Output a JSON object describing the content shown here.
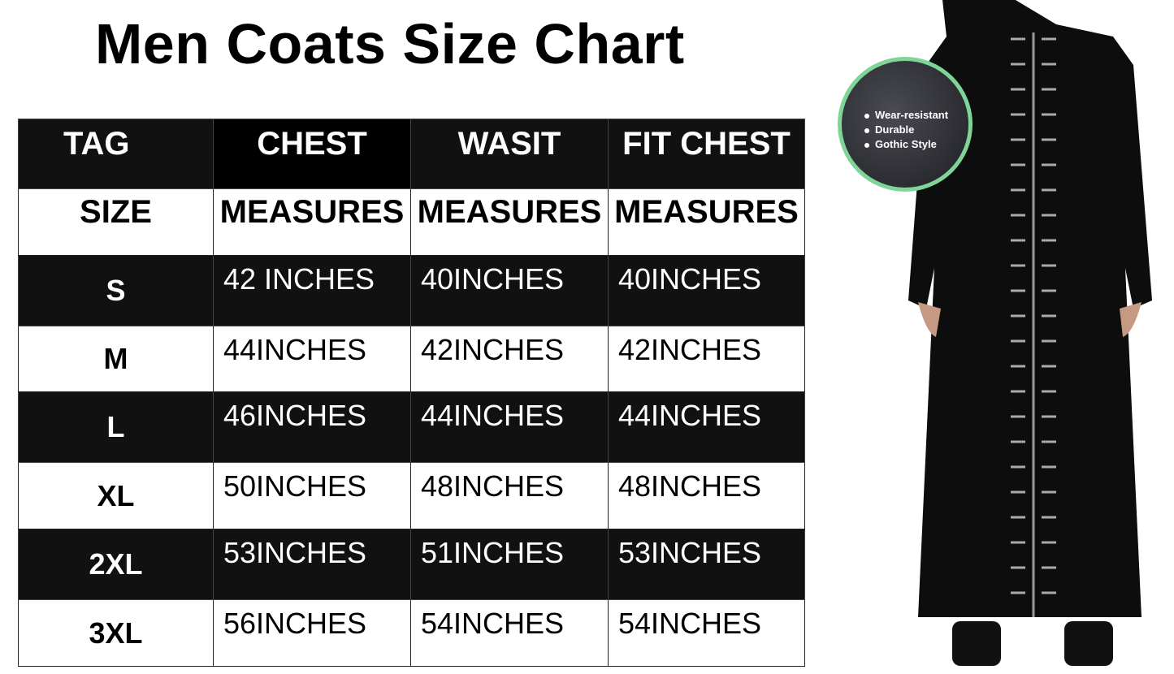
{
  "title": "Men Coats Size Chart",
  "table": {
    "header": [
      "TAG",
      "CHEST",
      "WASIT",
      "FIT CHEST"
    ],
    "subheader": [
      "SIZE",
      "MEASURES",
      "MEASURES",
      "MEASURES"
    ],
    "rows": [
      [
        "S",
        "42 INCHES",
        "40INCHES",
        "40INCHES"
      ],
      [
        "M",
        "44INCHES",
        "42INCHES",
        "42INCHES"
      ],
      [
        "L",
        "46INCHES",
        "44INCHES",
        "44INCHES"
      ],
      [
        "XL",
        "50INCHES",
        "48INCHES",
        "48INCHES"
      ],
      [
        "2XL",
        "53INCHES",
        "51INCHES",
        "53INCHES"
      ],
      [
        "3XL",
        "56INCHES",
        "54INCHES",
        "54INCHES"
      ]
    ]
  },
  "badge": {
    "features": [
      "Wear-resistant",
      "Durable",
      "Gothic Style"
    ],
    "ring_color": "#7fd498"
  }
}
